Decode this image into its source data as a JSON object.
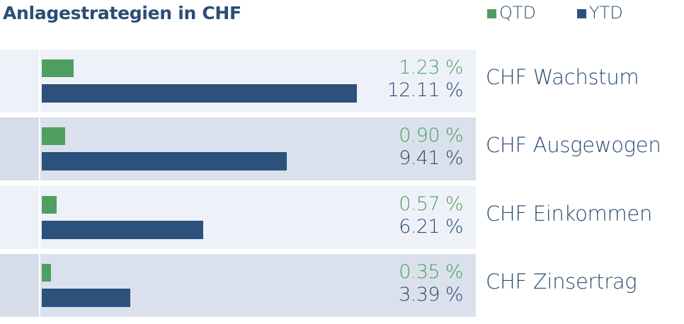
{
  "title": "Anlagestrategien in CHF",
  "legend": {
    "qtd": {
      "label": "QTD",
      "color": "#4f9f62"
    },
    "ytd": {
      "label": "YTD",
      "color": "#2c517c"
    }
  },
  "rows": [
    {
      "name": "CHF Wachstum",
      "qtd_label": "1.23 %",
      "ytd_label": "12.11 %"
    },
    {
      "name": "CHF Ausgewogen",
      "qtd_label": "0.90 %",
      "ytd_label": "9.41 %"
    },
    {
      "name": "CHF Einkommen",
      "qtd_label": "0.57 %",
      "ytd_label": "6.21 %"
    },
    {
      "name": "CHF Zinsertrag",
      "qtd_label": "0.35 %",
      "ytd_label": "3.39 %"
    }
  ],
  "chart_data": {
    "type": "bar",
    "orientation": "horizontal",
    "title": "Anlagestrategien in CHF",
    "categories": [
      "CHF Wachstum",
      "CHF Ausgewogen",
      "CHF Einkommen",
      "CHF Zinsertrag"
    ],
    "series": [
      {
        "name": "QTD",
        "values": [
          1.23,
          0.9,
          0.57,
          0.35
        ],
        "color": "#4f9f62"
      },
      {
        "name": "YTD",
        "values": [
          12.11,
          9.41,
          6.21,
          3.39
        ],
        "color": "#2c517c"
      }
    ],
    "xlim": [
      0,
      12.11
    ],
    "legend_position": "top-right",
    "grid": false
  }
}
